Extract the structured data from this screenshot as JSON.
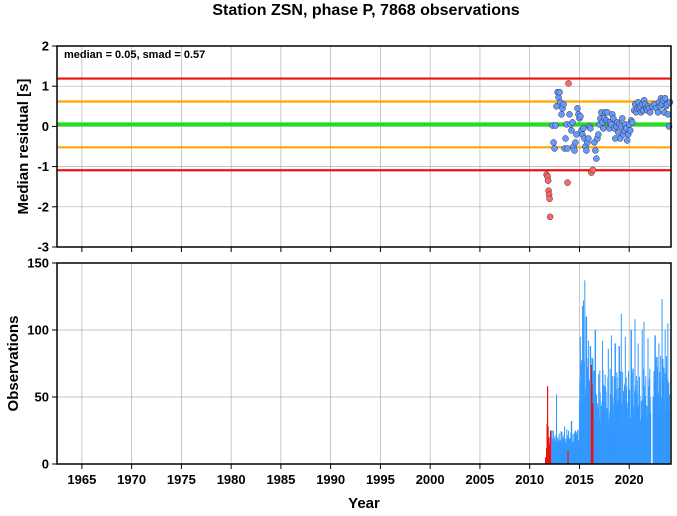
{
  "title": "Station ZSN, phase P, 7868 observations",
  "colors": {
    "median_line": "#22dd22",
    "smad_line": "#ffa500",
    "limit_line": "#ee1111",
    "point_normal": "#6699ff",
    "point_outlier": "#ff6666",
    "bar_normal": "#3399ff",
    "bar_outlier": "#ee1111",
    "grid": "#b0b0b0"
  },
  "chart_data": [
    {
      "type": "scatter",
      "ylabel": "Median residual [s]",
      "xlim": [
        1962.5,
        2024.2
      ],
      "ylim": [
        -3,
        2
      ],
      "x_ticks": [
        1965,
        1970,
        1975,
        1980,
        1985,
        1990,
        1995,
        2000,
        2005,
        2010,
        2015,
        2020
      ],
      "y_ticks": [
        2,
        1,
        0,
        -1,
        -2,
        -3
      ],
      "grid": true,
      "annotation": "median = 0.05, smad = 0.57",
      "hlines": [
        {
          "y": 0.05,
          "color": "green"
        },
        {
          "y": 0.62,
          "color": "orange"
        },
        {
          "y": -0.52,
          "color": "orange"
        },
        {
          "y": 1.19,
          "color": "red"
        },
        {
          "y": -1.09,
          "color": "red"
        }
      ],
      "outliers": [
        [
          2011.7,
          -1.2
        ],
        [
          2011.8,
          -1.25
        ],
        [
          2011.85,
          -1.35
        ],
        [
          2011.9,
          -1.6
        ],
        [
          2011.95,
          -1.7
        ],
        [
          2012.0,
          -1.8
        ],
        [
          2012.05,
          -2.25
        ],
        [
          2013.8,
          -1.4
        ],
        [
          2013.9,
          1.07
        ],
        [
          2016.2,
          -1.15
        ],
        [
          2016.35,
          -1.08
        ]
      ],
      "points": [
        [
          2012.3,
          0.02
        ],
        [
          2012.4,
          -0.4
        ],
        [
          2012.5,
          -0.55
        ],
        [
          2012.6,
          0.02
        ],
        [
          2012.7,
          0.5
        ],
        [
          2012.8,
          0.85
        ],
        [
          2012.9,
          0.72
        ],
        [
          2013.0,
          0.85
        ],
        [
          2013.1,
          0.6
        ],
        [
          2013.2,
          0.3
        ],
        [
          2013.3,
          0.45
        ],
        [
          2013.4,
          0.55
        ],
        [
          2013.5,
          -0.55
        ],
        [
          2013.6,
          -0.3
        ],
        [
          2013.7,
          0.05
        ],
        [
          2013.8,
          -0.55
        ],
        [
          2014.0,
          0.3
        ],
        [
          2014.1,
          0.05
        ],
        [
          2014.2,
          -0.1
        ],
        [
          2014.3,
          0.1
        ],
        [
          2014.4,
          -0.5
        ],
        [
          2014.5,
          -0.6
        ],
        [
          2014.6,
          -0.4
        ],
        [
          2014.7,
          -0.2
        ],
        [
          2014.8,
          0.45
        ],
        [
          2014.9,
          0.3
        ],
        [
          2015.0,
          0.2
        ],
        [
          2015.1,
          0.25
        ],
        [
          2015.2,
          -0.1
        ],
        [
          2015.3,
          -0.2
        ],
        [
          2015.4,
          -0.05
        ],
        [
          2015.5,
          -0.3
        ],
        [
          2015.6,
          -0.5
        ],
        [
          2015.7,
          -0.6
        ],
        [
          2015.8,
          -0.4
        ],
        [
          2015.9,
          -0.3
        ],
        [
          2016.0,
          0.0
        ],
        [
          2016.1,
          -0.05
        ],
        [
          2016.5,
          -0.4
        ],
        [
          2016.6,
          -0.6
        ],
        [
          2016.7,
          -0.8
        ],
        [
          2016.8,
          -0.3
        ],
        [
          2016.9,
          -0.2
        ],
        [
          2017.0,
          0.05
        ],
        [
          2017.1,
          0.2
        ],
        [
          2017.2,
          0.35
        ],
        [
          2017.3,
          0.1
        ],
        [
          2017.4,
          -0.05
        ],
        [
          2017.5,
          0.2
        ],
        [
          2017.6,
          0.35
        ],
        [
          2017.7,
          0.15
        ],
        [
          2017.8,
          0.35
        ],
        [
          2017.9,
          0.1
        ],
        [
          2018.0,
          -0.05
        ],
        [
          2018.1,
          0.1
        ],
        [
          2018.2,
          0.05
        ],
        [
          2018.3,
          0.3
        ],
        [
          2018.4,
          0.2
        ],
        [
          2018.5,
          -0.05
        ],
        [
          2018.6,
          -0.3
        ],
        [
          2018.7,
          0.0
        ],
        [
          2018.8,
          0.1
        ],
        [
          2018.9,
          -0.15
        ],
        [
          2019.0,
          0.05
        ],
        [
          2019.1,
          -0.3
        ],
        [
          2019.2,
          0.0
        ],
        [
          2019.3,
          0.2
        ],
        [
          2019.4,
          -0.2
        ],
        [
          2019.5,
          -0.1
        ],
        [
          2019.6,
          0.05
        ],
        [
          2019.7,
          -0.05
        ],
        [
          2019.8,
          -0.35
        ],
        [
          2019.9,
          -0.2
        ],
        [
          2020.0,
          0.05
        ],
        [
          2020.1,
          -0.1
        ],
        [
          2020.2,
          0.15
        ],
        [
          2020.3,
          0.1
        ],
        [
          2020.5,
          0.4
        ],
        [
          2020.6,
          0.55
        ],
        [
          2020.7,
          0.35
        ],
        [
          2020.8,
          0.45
        ],
        [
          2020.9,
          0.6
        ],
        [
          2021.0,
          0.45
        ],
        [
          2021.1,
          0.5
        ],
        [
          2021.2,
          0.35
        ],
        [
          2021.3,
          0.55
        ],
        [
          2021.4,
          0.4
        ],
        [
          2021.5,
          0.65
        ],
        [
          2021.6,
          0.55
        ],
        [
          2021.7,
          0.45
        ],
        [
          2021.8,
          0.4
        ],
        [
          2021.9,
          0.5
        ],
        [
          2022.0,
          0.45
        ],
        [
          2022.1,
          0.35
        ],
        [
          2022.3,
          0.5
        ],
        [
          2022.5,
          0.55
        ],
        [
          2022.7,
          0.45
        ],
        [
          2022.9,
          0.35
        ],
        [
          2023.0,
          0.6
        ],
        [
          2023.1,
          0.5
        ],
        [
          2023.2,
          0.7
        ],
        [
          2023.3,
          0.55
        ],
        [
          2023.4,
          0.65
        ],
        [
          2023.5,
          0.35
        ],
        [
          2023.6,
          0.7
        ],
        [
          2023.7,
          0.5
        ],
        [
          2023.8,
          0.55
        ],
        [
          2023.9,
          0.3
        ],
        [
          2024.0,
          0.0
        ],
        [
          2024.1,
          0.6
        ]
      ]
    },
    {
      "type": "bar",
      "xlabel": "Year",
      "ylabel": "Observations",
      "xlim": [
        1962.5,
        2024.2
      ],
      "ylim": [
        0,
        150
      ],
      "x_ticks": [
        1965,
        1970,
        1975,
        1980,
        1985,
        1990,
        1995,
        2000,
        2005,
        2010,
        2015,
        2020
      ],
      "y_ticks": [
        150,
        100,
        50,
        0
      ],
      "grid": true,
      "outlier_bars": [
        [
          2011.6,
          5
        ],
        [
          2011.7,
          12
        ],
        [
          2011.75,
          30
        ],
        [
          2011.8,
          58
        ],
        [
          2011.85,
          28
        ],
        [
          2011.9,
          18
        ],
        [
          2011.95,
          20
        ],
        [
          2012.0,
          15
        ],
        [
          2012.05,
          10
        ],
        [
          2012.1,
          25
        ],
        [
          2013.85,
          10
        ],
        [
          2016.2,
          74
        ],
        [
          2016.25,
          60
        ],
        [
          2016.35,
          45
        ]
      ],
      "bar_segments": [
        {
          "x": [
            2012.2,
            2015.0
          ],
          "level": 20,
          "variation": 6,
          "peaks": [
            [
              2012.7,
              52
            ],
            [
              2013.5,
              28
            ],
            [
              2014.2,
              32
            ],
            [
              2014.8,
              25
            ]
          ]
        },
        {
          "x": [
            2015.0,
            2017.0
          ],
          "level": 55,
          "variation": 25,
          "peaks": [
            [
              2015.1,
              95
            ],
            [
              2015.3,
              118
            ],
            [
              2015.4,
              122
            ],
            [
              2015.55,
              137
            ],
            [
              2015.7,
              110
            ],
            [
              2015.9,
              92
            ],
            [
              2016.1,
              88
            ],
            [
              2016.6,
              100
            ]
          ]
        },
        {
          "x": [
            2017.0,
            2020.0
          ],
          "level": 50,
          "variation": 22,
          "peaks": [
            [
              2017.3,
              92
            ],
            [
              2017.9,
              86
            ],
            [
              2018.2,
              96
            ],
            [
              2018.6,
              90
            ],
            [
              2019.0,
              88
            ],
            [
              2019.2,
              112
            ],
            [
              2019.6,
              95
            ]
          ]
        },
        {
          "x": [
            2020.0,
            2022.2
          ],
          "level": 50,
          "variation": 22,
          "peaks": [
            [
              2020.2,
              100
            ],
            [
              2020.6,
              108
            ],
            [
              2020.9,
              90
            ],
            [
              2021.3,
              100
            ],
            [
              2021.5,
              106
            ],
            [
              2021.9,
              94
            ]
          ]
        },
        {
          "x": [
            2022.4,
            2024.1
          ],
          "level": 60,
          "variation": 25,
          "peaks": [
            [
              2022.6,
              96
            ],
            [
              2023.0,
              90
            ],
            [
              2023.3,
              123
            ],
            [
              2023.6,
              100
            ],
            [
              2023.9,
              105
            ]
          ]
        }
      ]
    }
  ]
}
